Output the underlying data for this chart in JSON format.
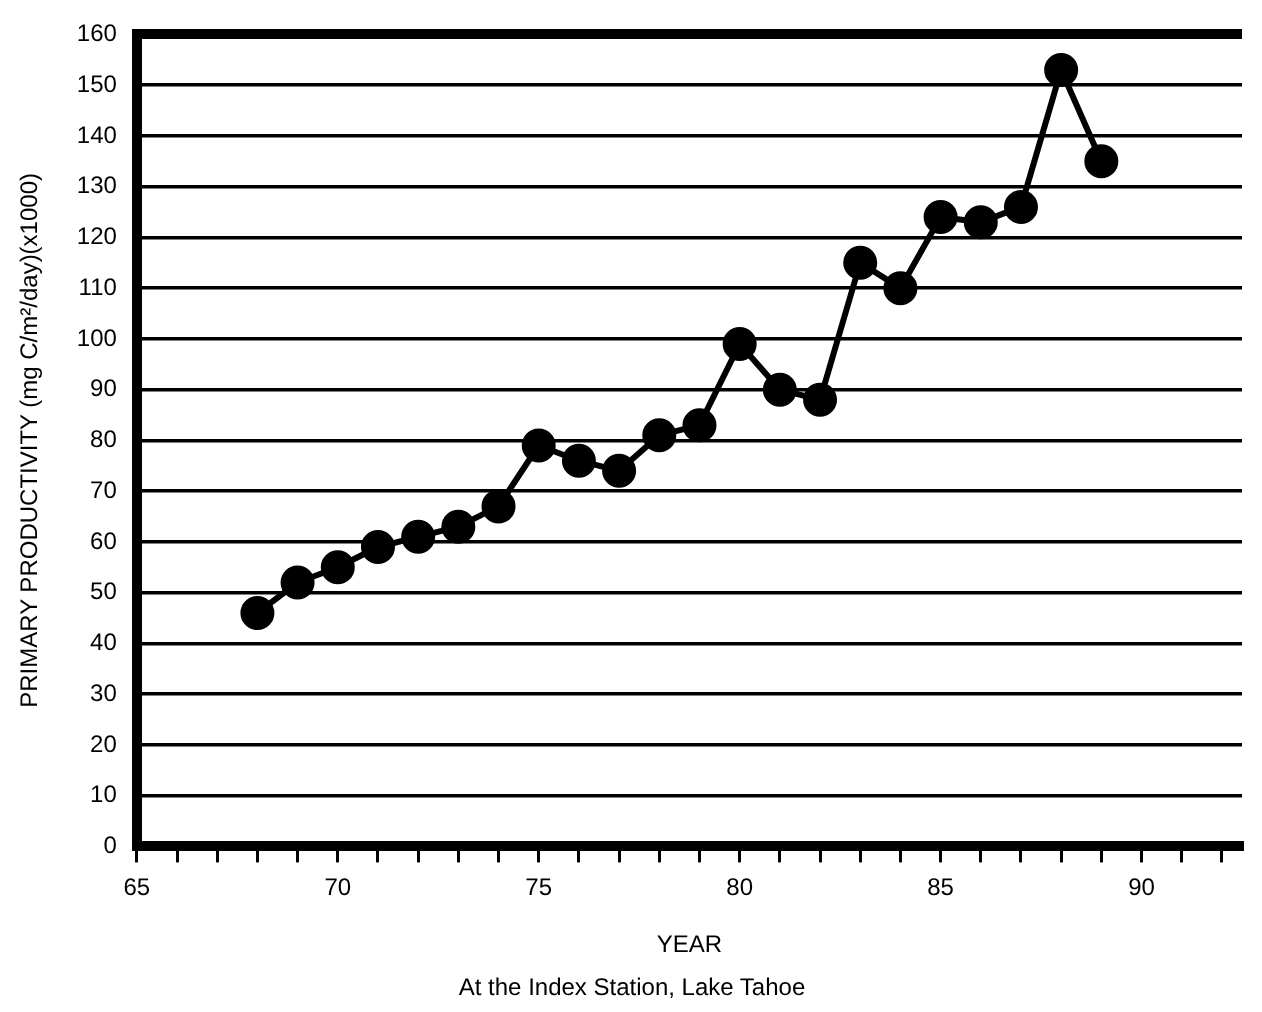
{
  "chart_data": {
    "type": "line",
    "xlabel": "YEAR",
    "ylabel": "PRIMARY PRODUCTIVITY (mg C/m²/day)(x1000)",
    "annotations": [
      "At the Index Station, Lake Tahoe"
    ],
    "x": [
      68,
      69,
      70,
      71,
      72,
      73,
      74,
      75,
      76,
      77,
      78,
      79,
      80,
      81,
      82,
      83,
      84,
      85,
      86,
      87,
      88,
      89
    ],
    "series": [
      {
        "color": "#000000",
        "values": [
          46,
          52,
          55,
          59,
          61,
          63,
          67,
          79,
          76,
          74,
          81,
          83,
          99,
          90,
          88,
          115,
          110,
          124,
          123,
          126,
          153,
          135
        ]
      }
    ],
    "xlim": [
      65,
      92.5
    ],
    "xticks": [
      65,
      {
        "value": 66,
        "label": null
      },
      {
        "value": 67,
        "label": null
      },
      {
        "value": 68,
        "label": null
      },
      {
        "value": 69,
        "label": null
      },
      70,
      {
        "value": 71,
        "label": null
      },
      {
        "value": 72,
        "label": null
      },
      {
        "value": 73,
        "label": null
      },
      {
        "value": 74,
        "label": null
      },
      75,
      {
        "value": 76,
        "label": null
      },
      {
        "value": 77,
        "label": null
      },
      {
        "value": 78,
        "label": null
      },
      {
        "value": 79,
        "label": null
      },
      80,
      {
        "value": 81,
        "label": null
      },
      {
        "value": 82,
        "label": null
      },
      {
        "value": 83,
        "label": null
      },
      {
        "value": 84,
        "label": null
      },
      85,
      {
        "value": 86,
        "label": null
      },
      {
        "value": 87,
        "label": null
      },
      {
        "value": 88,
        "label": null
      },
      {
        "value": 89,
        "label": null
      },
      90,
      {
        "value": 91,
        "label": null
      },
      {
        "value": 92,
        "label": null
      }
    ],
    "ylim": [
      0,
      160
    ],
    "yticks": [
      0,
      10,
      20,
      30,
      40,
      50,
      60,
      70,
      80,
      90,
      100,
      110,
      120,
      130,
      140,
      150,
      160
    ],
    "grid": "y",
    "legend": false,
    "marker": "circle",
    "line_style": "solid"
  }
}
